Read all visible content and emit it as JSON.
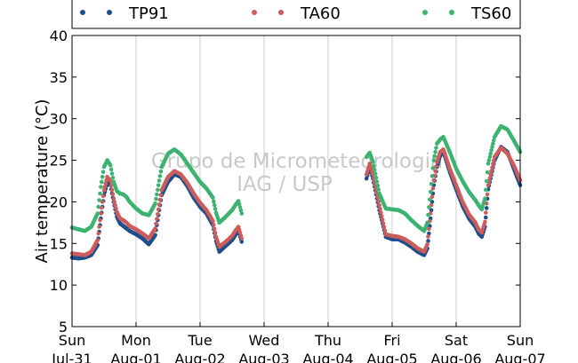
{
  "chart_data": {
    "type": "scatter",
    "title": "",
    "ylabel": "Air temperature (°C)",
    "xlabel": "",
    "ylim": [
      5,
      40
    ],
    "yticks": [
      5,
      10,
      15,
      20,
      25,
      30,
      35,
      40
    ],
    "xlim": [
      0,
      7
    ],
    "xticks": [
      {
        "x": 0,
        "line1": "Sun",
        "line2": "Jul-31"
      },
      {
        "x": 1,
        "line1": "Mon",
        "line2": "Aug-01"
      },
      {
        "x": 2,
        "line1": "Tue",
        "line2": "Aug-02"
      },
      {
        "x": 3,
        "line1": "Wed",
        "line2": "Aug-03"
      },
      {
        "x": 4,
        "line1": "Thu",
        "line2": "Aug-04"
      },
      {
        "x": 5,
        "line1": "Fri",
        "line2": "Aug-05"
      },
      {
        "x": 6,
        "line1": "Sat",
        "line2": "Aug-06"
      },
      {
        "x": 7,
        "line1": "Sun",
        "line2": "Aug-07"
      }
    ],
    "grid": "vertical",
    "legend_position": "top",
    "watermark": [
      "Grupo de Micrometeorologia",
      "IAG / USP"
    ],
    "series": [
      {
        "name": "TP91",
        "color": "#1f4e8c",
        "x": [
          0.0,
          0.1,
          0.2,
          0.3,
          0.4,
          0.45,
          0.5,
          0.55,
          0.6,
          0.65,
          0.7,
          0.75,
          0.8,
          0.85,
          0.9,
          1.0,
          1.1,
          1.2,
          1.3,
          1.4,
          1.5,
          1.6,
          1.7,
          1.8,
          1.9,
          2.0,
          2.1,
          2.2,
          2.25,
          2.3,
          2.4,
          2.5,
          2.55,
          2.6,
          2.65,
          4.6,
          4.65,
          4.7,
          4.8,
          4.9,
          5.0,
          5.1,
          5.2,
          5.3,
          5.4,
          5.5,
          5.55,
          5.6,
          5.65,
          5.7,
          5.75,
          5.8,
          5.9,
          6.0,
          6.1,
          6.2,
          6.3,
          6.35,
          6.4,
          6.45,
          6.5,
          6.6,
          6.7,
          6.8,
          6.9,
          7.0
        ],
        "y": [
          13.3,
          13.2,
          13.3,
          13.6,
          14.8,
          18.0,
          20.8,
          22.3,
          22.0,
          20.0,
          18.2,
          17.4,
          17.1,
          16.8,
          16.5,
          16.1,
          15.6,
          14.9,
          16.0,
          20.8,
          22.4,
          23.3,
          23.0,
          21.9,
          20.5,
          19.4,
          18.6,
          17.2,
          15.3,
          14.0,
          14.7,
          15.4,
          16.0,
          16.5,
          15.2,
          22.8,
          24.2,
          22.8,
          19.0,
          15.8,
          15.5,
          15.5,
          15.1,
          14.6,
          14.0,
          13.6,
          14.4,
          18.0,
          22.0,
          24.2,
          25.5,
          26.0,
          23.6,
          21.5,
          19.5,
          18.0,
          17.0,
          16.2,
          15.8,
          17.0,
          21.5,
          25.0,
          26.6,
          26.0,
          24.0,
          22.0
        ]
      },
      {
        "name": "TA60",
        "color": "#cd5c5c",
        "x": [
          0.0,
          0.1,
          0.2,
          0.3,
          0.4,
          0.45,
          0.5,
          0.55,
          0.6,
          0.65,
          0.7,
          0.75,
          0.8,
          0.85,
          0.9,
          1.0,
          1.1,
          1.2,
          1.3,
          1.4,
          1.5,
          1.6,
          1.7,
          1.8,
          1.9,
          2.0,
          2.1,
          2.2,
          2.25,
          2.3,
          2.4,
          2.5,
          2.55,
          2.6,
          2.65,
          4.6,
          4.65,
          4.7,
          4.8,
          4.9,
          5.0,
          5.1,
          5.2,
          5.3,
          5.4,
          5.5,
          5.55,
          5.6,
          5.65,
          5.7,
          5.75,
          5.8,
          5.9,
          6.0,
          6.1,
          6.2,
          6.3,
          6.35,
          6.4,
          6.45,
          6.5,
          6.6,
          6.7,
          6.8,
          6.9,
          7.0
        ],
        "y": [
          13.8,
          13.7,
          13.6,
          14.0,
          15.4,
          18.6,
          21.4,
          23.0,
          22.5,
          20.4,
          18.8,
          18.0,
          17.8,
          17.5,
          17.1,
          16.7,
          16.2,
          15.6,
          16.8,
          21.4,
          23.0,
          23.7,
          23.3,
          22.3,
          21.0,
          19.9,
          19.0,
          17.7,
          15.8,
          14.6,
          15.2,
          15.9,
          16.5,
          17.0,
          15.6,
          23.3,
          24.6,
          23.3,
          19.6,
          16.1,
          15.9,
          15.8,
          15.5,
          15.0,
          14.4,
          14.0,
          14.9,
          18.6,
          22.6,
          24.8,
          26.0,
          26.3,
          24.0,
          22.0,
          20.0,
          18.5,
          17.5,
          16.7,
          16.3,
          17.6,
          22.0,
          25.4,
          26.5,
          25.8,
          24.4,
          22.6
        ]
      },
      {
        "name": "TS60",
        "color": "#3cb371",
        "x": [
          0.0,
          0.1,
          0.2,
          0.3,
          0.4,
          0.45,
          0.5,
          0.55,
          0.6,
          0.65,
          0.7,
          0.75,
          0.8,
          0.85,
          0.9,
          1.0,
          1.1,
          1.2,
          1.3,
          1.4,
          1.5,
          1.6,
          1.7,
          1.8,
          1.9,
          2.0,
          2.1,
          2.2,
          2.25,
          2.3,
          2.4,
          2.5,
          2.55,
          2.6,
          2.65,
          4.6,
          4.65,
          4.7,
          4.8,
          4.9,
          5.0,
          5.1,
          5.2,
          5.3,
          5.4,
          5.5,
          5.55,
          5.6,
          5.65,
          5.7,
          5.75,
          5.8,
          5.9,
          6.0,
          6.1,
          6.2,
          6.3,
          6.35,
          6.4,
          6.45,
          6.5,
          6.6,
          6.7,
          6.8,
          6.9,
          7.0
        ],
        "y": [
          16.9,
          16.7,
          16.5,
          17.0,
          18.6,
          21.8,
          24.2,
          25.0,
          24.4,
          22.4,
          21.3,
          21.0,
          20.9,
          20.6,
          20.0,
          19.2,
          18.6,
          18.4,
          19.8,
          24.2,
          25.8,
          26.3,
          25.7,
          24.6,
          23.5,
          22.4,
          21.6,
          20.5,
          18.7,
          17.5,
          18.2,
          19.0,
          19.6,
          20.1,
          18.6,
          25.4,
          25.9,
          24.8,
          21.0,
          19.2,
          19.1,
          19.0,
          18.6,
          17.8,
          17.1,
          16.5,
          17.5,
          21.2,
          25.0,
          27.0,
          27.5,
          27.8,
          26.0,
          24.0,
          22.5,
          21.2,
          20.2,
          19.6,
          19.1,
          20.4,
          24.6,
          27.8,
          29.1,
          28.7,
          27.4,
          26.0
        ]
      }
    ]
  }
}
